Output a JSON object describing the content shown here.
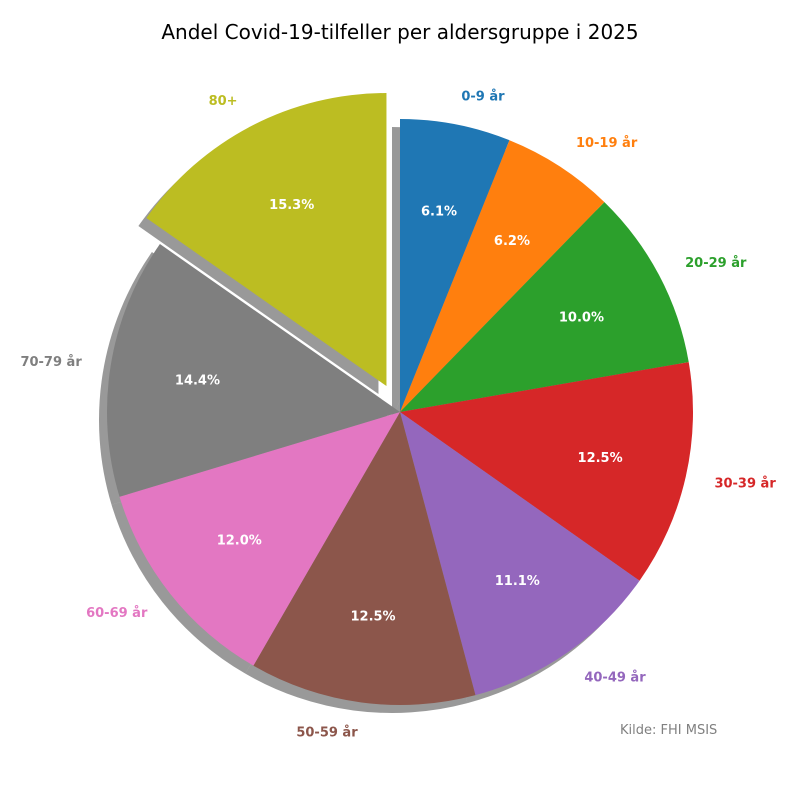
{
  "chart_data": {
    "type": "pie",
    "title": "Andel Covid-19-tilfeller per aldersgruppe i 2025",
    "categories": [
      "0-9 år",
      "10-19 år",
      "20-29 år",
      "30-39 år",
      "40-49 år",
      "50-59 år",
      "60-69 år",
      "70-79 år",
      "80+"
    ],
    "values": [
      6.1,
      6.2,
      10.0,
      12.5,
      11.1,
      12.5,
      12.0,
      14.4,
      15.3
    ],
    "value_labels": [
      "6.1%",
      "6.2%",
      "10.0%",
      "12.5%",
      "11.1%",
      "12.5%",
      "12.0%",
      "14.4%",
      "15.3%"
    ],
    "colors": [
      "#1f77b4",
      "#ff7f0e",
      "#2ca02c",
      "#d62728",
      "#9467bd",
      "#8c564b",
      "#e377c2",
      "#7f7f7f",
      "#bcbd22"
    ],
    "exploded": [
      "80+"
    ],
    "start_angle": 90,
    "direction": "clockwise",
    "shadow": true,
    "source_note": "Kilde: FHI MSIS"
  }
}
